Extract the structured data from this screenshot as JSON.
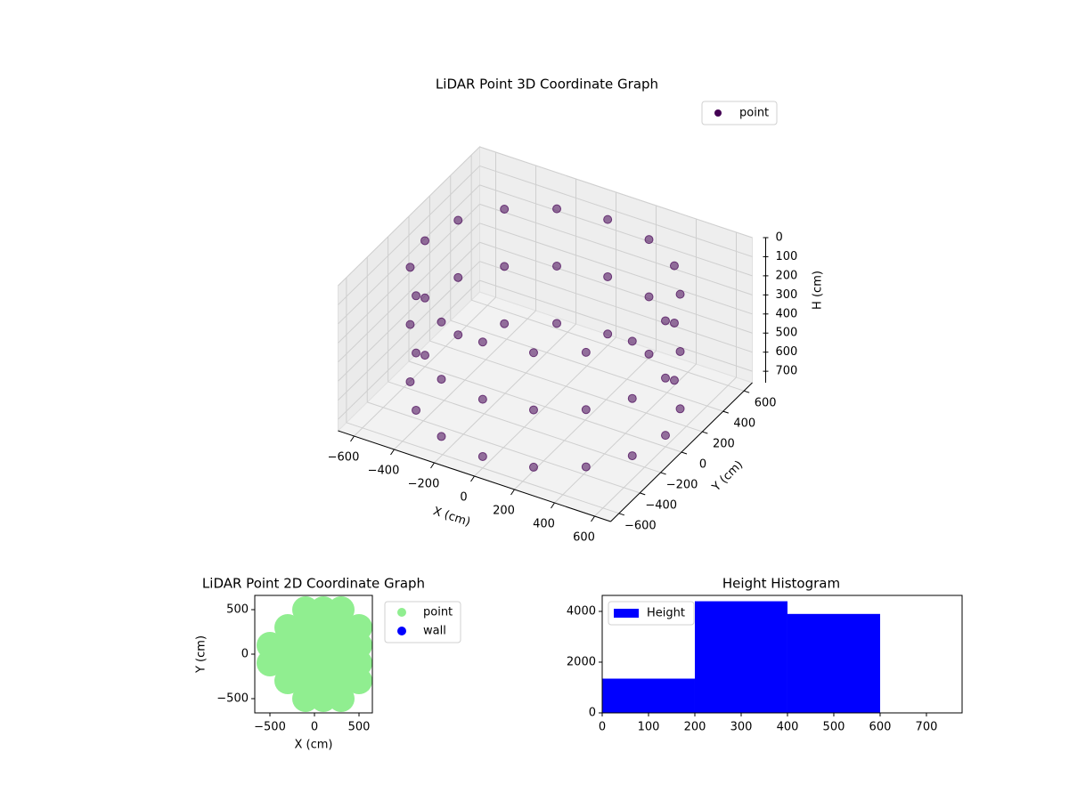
{
  "chart_data": [
    {
      "type": "scatter3d",
      "title": "LiDAR Point 3D Coordinate Graph",
      "xlabel": "X (cm)",
      "ylabel": "Y (cm)",
      "zlabel": "H (cm)",
      "xlim": [
        -680,
        680
      ],
      "ylim": [
        -680,
        680
      ],
      "zlim": [
        0,
        760
      ],
      "xticks": [
        {
          "value": -600,
          "label": "−600"
        },
        {
          "value": -400,
          "label": "−400"
        },
        {
          "value": -200,
          "label": "−200"
        },
        0,
        200,
        400,
        600
      ],
      "yticks": [
        {
          "value": -600,
          "label": "−600"
        },
        {
          "value": -400,
          "label": "−400"
        },
        {
          "value": -200,
          "label": "−200"
        },
        0,
        200,
        400,
        600
      ],
      "zticks": [
        0,
        100,
        200,
        300,
        400,
        500,
        600,
        700
      ],
      "legend": "upper right",
      "series": [
        {
          "name": "point",
          "color": "#440154",
          "x": [
            600,
            554,
            424,
            230,
            0,
            -230,
            -424,
            -554,
            -600,
            -554,
            -424,
            -230,
            0,
            230,
            424,
            554,
            600,
            554,
            424,
            230,
            0,
            -230,
            -424,
            -554,
            -600,
            -554,
            -424,
            -230,
            0,
            230,
            424,
            554,
            600,
            554,
            424,
            230,
            0,
            -230,
            -424,
            -554,
            -600,
            -554,
            -424,
            -230,
            0,
            230,
            424,
            554
          ],
          "y": [
            0,
            230,
            424,
            554,
            600,
            554,
            424,
            230,
            0,
            -230,
            -424,
            -554,
            -600,
            -554,
            -424,
            -230,
            0,
            230,
            424,
            554,
            600,
            554,
            424,
            230,
            0,
            -230,
            -424,
            -554,
            -600,
            -554,
            -424,
            -230,
            0,
            230,
            424,
            554,
            600,
            554,
            424,
            230,
            0,
            -230,
            -424,
            -554,
            -600,
            -554,
            -424,
            -230
          ],
          "z": [
            100,
            100,
            100,
            100,
            100,
            100,
            100,
            100,
            100,
            100,
            100,
            100,
            100,
            100,
            100,
            100,
            400,
            400,
            400,
            400,
            400,
            400,
            400,
            400,
            400,
            400,
            400,
            400,
            400,
            400,
            400,
            400,
            700,
            700,
            700,
            700,
            700,
            700,
            700,
            700,
            700,
            700,
            700,
            700,
            700,
            700,
            700,
            700
          ]
        }
      ]
    },
    {
      "type": "scatter",
      "title": "LiDAR Point 2D Coordinate Graph",
      "xlabel": "X (cm)",
      "ylabel": "Y (cm)",
      "xlim": [
        -670,
        650
      ],
      "ylim": [
        -660,
        660
      ],
      "xticks": [
        {
          "value": -500,
          "label": "−500"
        },
        0,
        500
      ],
      "yticks": [
        {
          "value": -500,
          "label": "−500"
        },
        0,
        500
      ],
      "legend": "outside right",
      "series": [
        {
          "name": "point",
          "color": "#90ee90",
          "x": [
            -500,
            -500,
            -300,
            -300,
            -300,
            -300,
            -100,
            -100,
            -100,
            -100,
            -100,
            -100,
            100,
            100,
            100,
            100,
            100,
            100,
            300,
            300,
            300,
            300,
            300,
            300,
            500,
            500,
            500,
            500
          ],
          "y": [
            -100,
            100,
            -300,
            -100,
            100,
            300,
            -500,
            -300,
            -100,
            100,
            300,
            500,
            -500,
            -300,
            -100,
            100,
            300,
            500,
            -500,
            -300,
            -100,
            100,
            300,
            500,
            -300,
            -100,
            100,
            300
          ]
        },
        {
          "name": "wall",
          "color": "#0000ff",
          "x": [],
          "y": []
        }
      ]
    },
    {
      "type": "histogram",
      "title": "Height Histogram",
      "legend": "upper left",
      "series": [
        {
          "name": "Height",
          "color": "#0000ff",
          "bins": [
            0,
            200,
            400,
            600
          ],
          "values": [
            1350,
            4400,
            3900
          ]
        }
      ],
      "xlim": [
        0,
        777
      ],
      "ylim": [
        0,
        4630
      ],
      "xticks": [
        0,
        100,
        200,
        300,
        400,
        500,
        600,
        700
      ],
      "yticks": [
        0,
        2000,
        4000
      ]
    }
  ]
}
